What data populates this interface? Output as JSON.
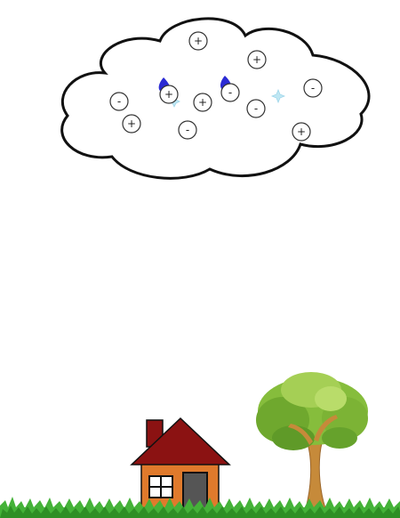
{
  "scene": {
    "background": "#ffffff",
    "cloud": {
      "fill": "#ffffff",
      "outline": "#111111",
      "charges": [
        {
          "sign": "+"
        },
        {
          "sign": "+"
        },
        {
          "sign": "-"
        },
        {
          "sign": "+"
        },
        {
          "sign": "+"
        },
        {
          "sign": "-"
        },
        {
          "sign": "-"
        },
        {
          "sign": "-"
        },
        {
          "sign": "-"
        },
        {
          "sign": "+"
        },
        {
          "sign": "+"
        }
      ],
      "droplet_color": "#2b2bd4",
      "ice_crystal_color": "#bfe7f3"
    },
    "house": {
      "wall_color": "#e07a2c",
      "roof_color": "#8b1212",
      "door_color": "#555555"
    },
    "tree": {
      "trunk_color": "#c68a3a",
      "foliage_color": "#86bd3c"
    },
    "grass_color": "#3aa82f"
  }
}
